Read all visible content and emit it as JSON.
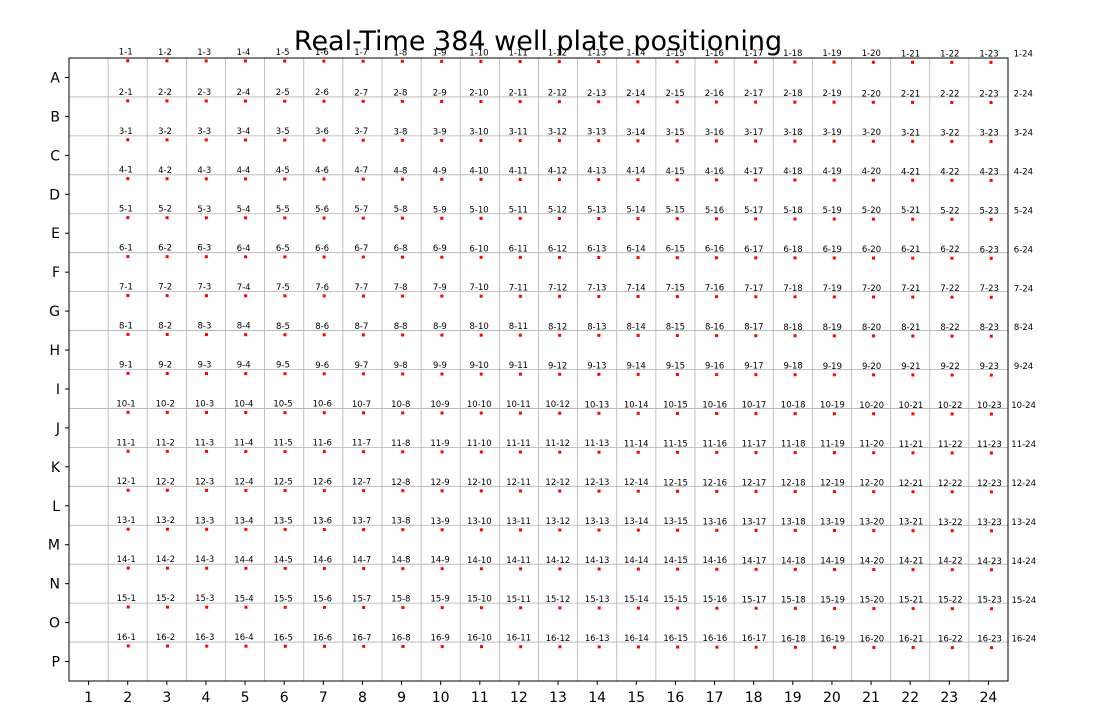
{
  "chart_data": {
    "type": "scatter",
    "title": "Real-Time 384 well plate positioning",
    "xlabel": "",
    "ylabel": "",
    "x_tick_labels": [
      "1",
      "2",
      "3",
      "4",
      "5",
      "6",
      "7",
      "8",
      "9",
      "10",
      "11",
      "12",
      "13",
      "14",
      "15",
      "16",
      "17",
      "18",
      "19",
      "20",
      "21",
      "22",
      "23",
      "24"
    ],
    "y_tick_labels": [
      "A",
      "B",
      "C",
      "D",
      "E",
      "F",
      "G",
      "H",
      "I",
      "J",
      "K",
      "L",
      "M",
      "N",
      "O",
      "P"
    ],
    "xlim": [
      0.5,
      24.5
    ],
    "ylim": [
      0.5,
      16.5
    ],
    "y_inverted": true,
    "grid": true,
    "marker_color": "#ff0000",
    "label_template": "{row}-{col}",
    "rows": [
      {
        "row": 1,
        "y": 0.57,
        "label_y": 0.4,
        "x_start": 2.1,
        "x_step": 1.0,
        "labels_shift_at": 24,
        "points": 23,
        "extra_label_only": 24
      },
      {
        "row": 2,
        "y": 1.6
      },
      {
        "row": 3,
        "y": 2.6
      },
      {
        "row": 4,
        "y": 3.6
      },
      {
        "row": 5,
        "y": 4.6
      },
      {
        "row": 6,
        "y": 5.6
      },
      {
        "row": 7,
        "y": 6.6
      },
      {
        "row": 8,
        "y": 7.6
      },
      {
        "row": 9,
        "y": 8.6
      },
      {
        "row": 10,
        "y": 9.6
      },
      {
        "row": 11,
        "y": 10.6
      },
      {
        "row": 12,
        "y": 11.6
      },
      {
        "row": 13,
        "y": 12.6
      },
      {
        "row": 14,
        "y": 13.6
      },
      {
        "row": 15,
        "y": 14.6
      },
      {
        "row": 16,
        "y": 15.6
      }
    ]
  }
}
